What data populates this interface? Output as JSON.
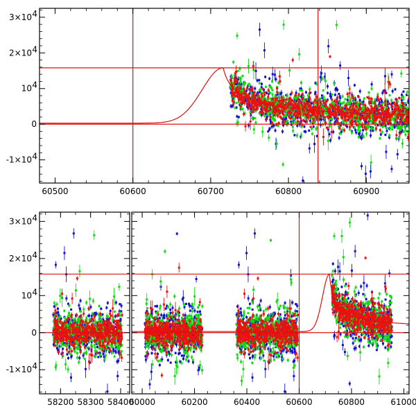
{
  "chart_data": [
    {
      "type": "scatter",
      "panel": "top",
      "xlim": [
        60480,
        60955
      ],
      "ylim": [
        -16500,
        32500
      ],
      "x_ticks": [
        60500,
        60600,
        60700,
        60800,
        60900
      ],
      "x_tick_labels": [
        "60500",
        "60600",
        "60700",
        "60800",
        "60900"
      ],
      "y_ticks": [
        -10000,
        0,
        10000,
        20000,
        30000
      ],
      "y_tick_labels": [
        {
          "base": "-1×10",
          "exp": "4"
        },
        {
          "base": "0",
          "exp": ""
        },
        {
          "base": "10",
          "exp": "4"
        },
        {
          "base": "2×10",
          "exp": "4"
        },
        {
          "base": "3×10",
          "exp": "4"
        }
      ],
      "reference_lines": {
        "vertical": [
          60600,
          60838
        ],
        "horizontal": [
          0,
          15800
        ]
      },
      "model_curve": {
        "baseline": 300,
        "peak_x": 60716,
        "peak_y": 15800,
        "rise_width": 38,
        "decay_scale": 11,
        "decay_power": 0.6
      },
      "series": [
        {
          "name": "blue band",
          "color": "#1010d0",
          "scatter_sigma": 4300
        },
        {
          "name": "green band",
          "color": "#10dd10",
          "scatter_sigma": 3900
        },
        {
          "name": "red band",
          "color": "#ee1010",
          "scatter_sigma": 2600
        }
      ],
      "observing_windows": [
        [
          60725,
          60955
        ]
      ]
    },
    {
      "type": "scatter",
      "panel": "bottom",
      "broken_x_axis": true,
      "segments": [
        {
          "xlim": [
            58130,
            58430
          ],
          "x_ticks": [
            58200,
            58300,
            58400
          ],
          "x_tick_labels": [
            "58200",
            "58300",
            "58400"
          ]
        },
        {
          "xlim": [
            59960,
            61020
          ],
          "x_ticks": [
            60000,
            60200,
            60400,
            60600,
            60800,
            61000
          ],
          "x_tick_labels": [
            "60000",
            "60200",
            "60400",
            "60600",
            "60800",
            "61000"
          ]
        }
      ],
      "ylim": [
        -16500,
        32500
      ],
      "y_ticks": [
        -10000,
        0,
        10000,
        20000,
        30000
      ],
      "y_tick_labels": [
        {
          "base": "-1×10",
          "exp": "4"
        },
        {
          "base": "0",
          "exp": ""
        },
        {
          "base": "10",
          "exp": "4"
        },
        {
          "base": "2×10",
          "exp": "4"
        },
        {
          "base": "3×10",
          "exp": "4"
        }
      ],
      "reference_lines": {
        "vertical": [
          60600
        ],
        "horizontal": [
          0,
          15800
        ]
      },
      "model_curve": {
        "baseline": 300,
        "peak_x": 60716,
        "peak_y": 15800,
        "rise_width": 38,
        "decay_scale": 11,
        "decay_power": 0.6
      },
      "series": [
        {
          "name": "blue band",
          "color": "#1010d0",
          "scatter_sigma": 4500
        },
        {
          "name": "green band",
          "color": "#10dd10",
          "scatter_sigma": 4200
        },
        {
          "name": "red band",
          "color": "#ee1010",
          "scatter_sigma": 2800
        }
      ],
      "observing_windows": [
        [
          58175,
          58405
        ],
        [
          60010,
          60230
        ],
        [
          60360,
          60595
        ],
        [
          60725,
          60955
        ]
      ]
    }
  ]
}
